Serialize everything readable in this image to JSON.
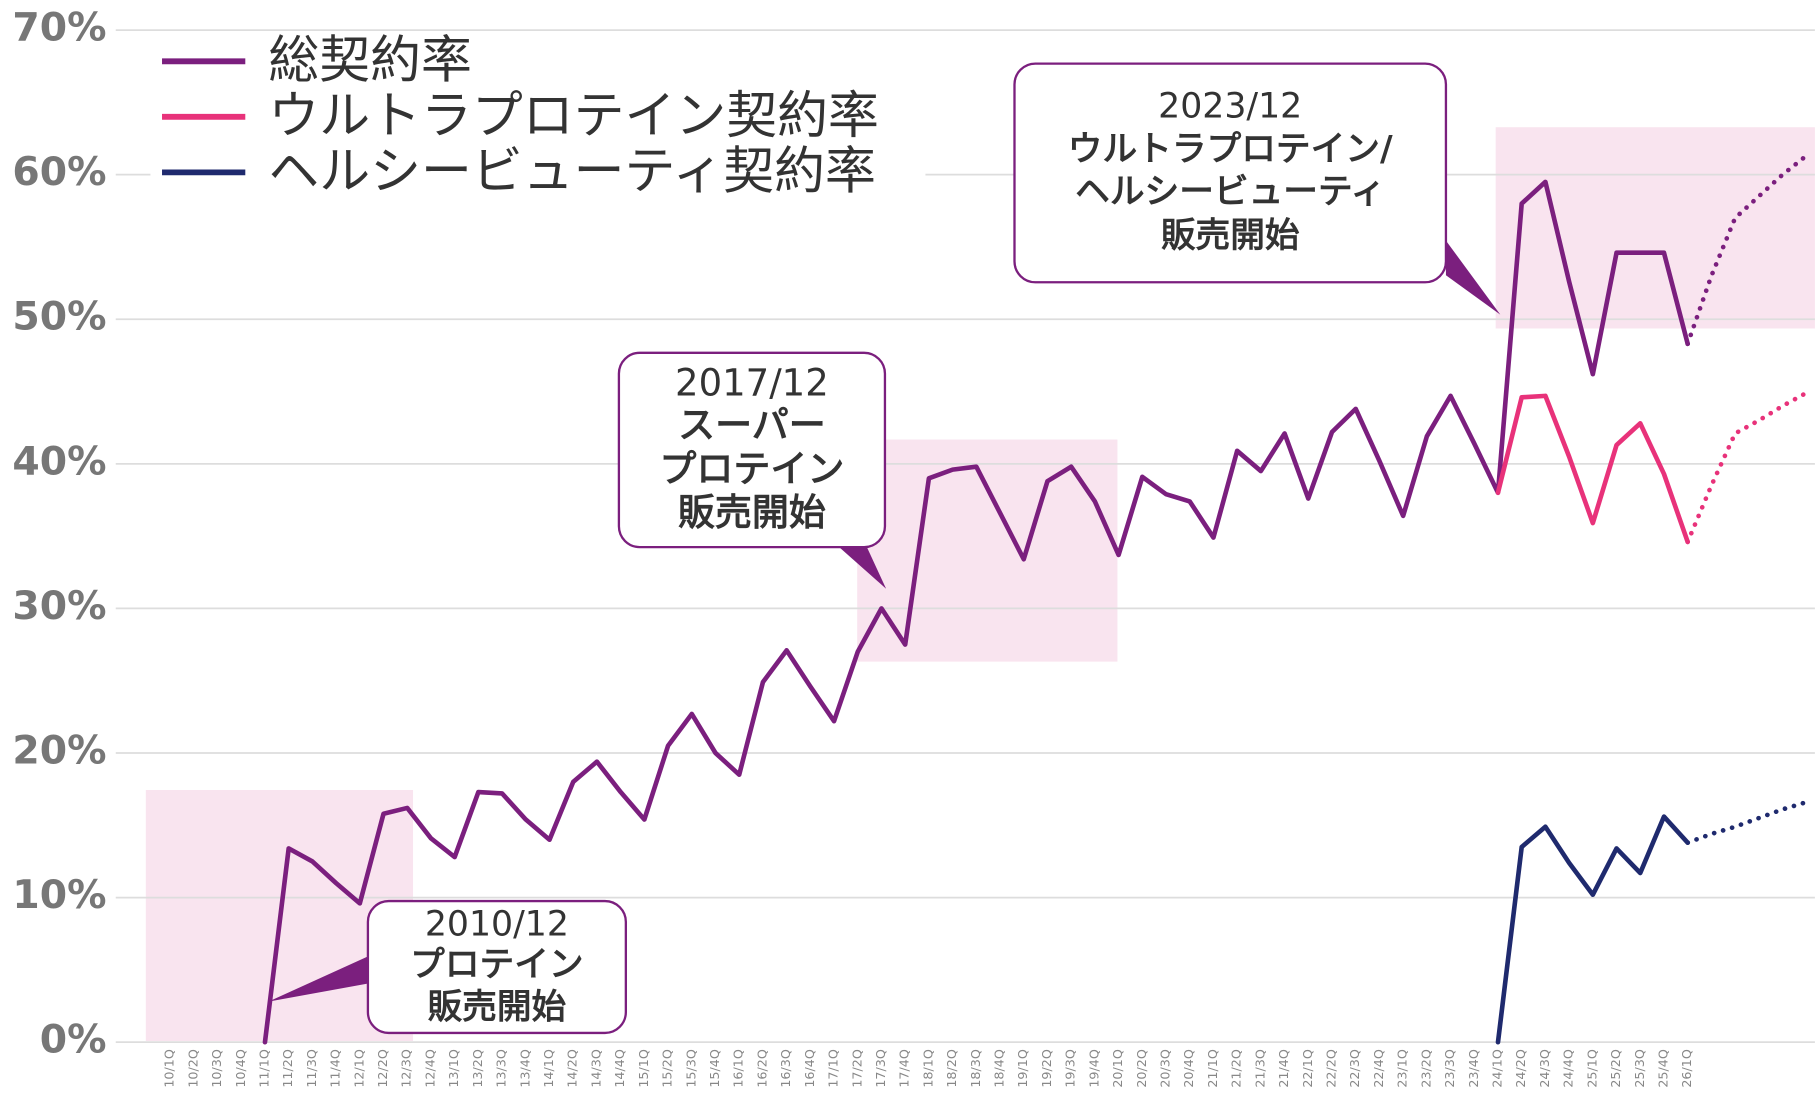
{
  "chart_data": {
    "type": "line",
    "categories": [
      "10/1Q",
      "10/2Q",
      "10/3Q",
      "10/4Q",
      "11/1Q",
      "11/2Q",
      "11/3Q",
      "11/4Q",
      "12/1Q",
      "12/2Q",
      "12/3Q",
      "12/4Q",
      "13/1Q",
      "13/2Q",
      "13/3Q",
      "13/4Q",
      "14/1Q",
      "14/2Q",
      "14/3Q",
      "14/4Q",
      "15/1Q",
      "15/2Q",
      "15/3Q",
      "15/4Q",
      "16/1Q",
      "16/2Q",
      "16/3Q",
      "16/4Q",
      "17/1Q",
      "17/2Q",
      "17/3Q",
      "17/4Q",
      "18/1Q",
      "18/2Q",
      "18/3Q",
      "18/4Q",
      "19/1Q",
      "19/2Q",
      "19/3Q",
      "19/4Q",
      "20/1Q",
      "20/2Q",
      "20/3Q",
      "20/4Q",
      "21/1Q",
      "21/2Q",
      "21/3Q",
      "21/4Q",
      "22/1Q",
      "22/2Q",
      "22/3Q",
      "22/4Q",
      "23/1Q",
      "23/2Q",
      "23/3Q",
      "23/4Q",
      "24/1Q",
      "24/2Q",
      "24/3Q",
      "24/4Q",
      "25/1Q",
      "25/2Q",
      "25/3Q",
      "25/4Q",
      "26/1Q",
      null,
      null,
      null,
      null,
      null
    ],
    "forecast_start": "26/1Q",
    "series": [
      {
        "name": "総契約率",
        "color": "#7b1f7e",
        "values": [
          null,
          null,
          null,
          null,
          0,
          13.4,
          12.5,
          11.0,
          9.6,
          15.8,
          16.2,
          14.1,
          12.8,
          17.3,
          17.2,
          15.4,
          14.0,
          18.0,
          19.4,
          17.3,
          15.4,
          20.5,
          22.7,
          20.0,
          18.5,
          24.9,
          27.1,
          24.6,
          22.2,
          27.0,
          30.0,
          27.5,
          39.0,
          39.6,
          39.8,
          36.6,
          33.4,
          38.8,
          39.8,
          37.4,
          33.7,
          39.1,
          37.9,
          37.4,
          34.9,
          40.9,
          39.5,
          42.1,
          37.6,
          42.2,
          43.8,
          40.2,
          36.4,
          41.9,
          44.7,
          41.4,
          38.0,
          58.0,
          59.5,
          52.6,
          46.2,
          54.6,
          54.6,
          54.6,
          48.3,
          53.0,
          57.0,
          58.5,
          60.0,
          61.3
        ]
      },
      {
        "name": "ウルトラプロテイン契約率",
        "color": "#e8327a",
        "values": [
          null,
          null,
          null,
          null,
          null,
          null,
          null,
          null,
          null,
          null,
          null,
          null,
          null,
          null,
          null,
          null,
          null,
          null,
          null,
          null,
          null,
          null,
          null,
          null,
          null,
          null,
          null,
          null,
          null,
          null,
          null,
          null,
          null,
          null,
          null,
          null,
          null,
          null,
          null,
          null,
          null,
          null,
          null,
          null,
          null,
          null,
          null,
          null,
          null,
          null,
          null,
          null,
          null,
          null,
          null,
          null,
          38.0,
          44.6,
          44.7,
          40.5,
          35.9,
          41.3,
          42.8,
          39.3,
          34.6,
          38.5,
          42.1,
          43.0,
          44.0,
          44.9
        ]
      },
      {
        "name": "ヘルシービューティ契約率",
        "color": "#1f2a6e",
        "values": [
          null,
          null,
          null,
          null,
          null,
          null,
          null,
          null,
          null,
          null,
          null,
          null,
          null,
          null,
          null,
          null,
          null,
          null,
          null,
          null,
          null,
          null,
          null,
          null,
          null,
          null,
          null,
          null,
          null,
          null,
          null,
          null,
          null,
          null,
          null,
          null,
          null,
          null,
          null,
          null,
          null,
          null,
          null,
          null,
          null,
          null,
          null,
          null,
          null,
          null,
          null,
          null,
          null,
          null,
          null,
          null,
          0,
          13.5,
          14.9,
          12.4,
          10.2,
          13.4,
          11.7,
          15.6,
          13.8,
          14.4,
          14.9,
          15.5,
          16.1,
          16.6
        ]
      }
    ],
    "ylim": [
      0,
      70
    ],
    "yticks": [
      {
        "value": 0,
        "label": "0%"
      },
      {
        "value": 10,
        "label": "10%"
      },
      {
        "value": 20,
        "label": "20%"
      },
      {
        "value": 30,
        "label": "30%"
      },
      {
        "value": 40,
        "label": "40%"
      },
      {
        "value": 50,
        "label": "50%"
      },
      {
        "value": 60,
        "label": "60%"
      },
      {
        "value": 70,
        "label": "70%"
      }
    ],
    "grid": true,
    "legend": "top-left",
    "annotations": [
      {
        "lines": [
          "2010/12",
          "プロテイン",
          "販売開始"
        ]
      },
      {
        "lines": [
          "2017/12",
          "スーパー",
          "プロテイン",
          "販売開始"
        ]
      },
      {
        "lines": [
          "2023/12",
          "ウルトラプロテイン/",
          "ヘルシービューティ",
          "販売開始"
        ]
      }
    ]
  }
}
